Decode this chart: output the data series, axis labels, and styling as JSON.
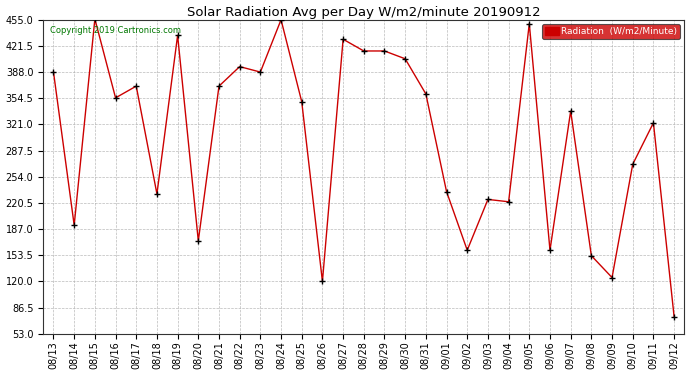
{
  "title": "Solar Radiation Avg per Day W/m2/minute 20190912",
  "copyright": "Copyright 2019 Cartronics.com",
  "legend_label": "Radiation  (W/m2/Minute)",
  "legend_bg": "#cc0000",
  "legend_text_color": "#ffffff",
  "line_color": "#cc0000",
  "marker_color": "#000000",
  "bg_color": "#ffffff",
  "plot_bg_color": "#ffffff",
  "grid_color": "#aaaaaa",
  "title_color": "#000000",
  "copyright_color": "#007700",
  "ylim": [
    53.0,
    455.0
  ],
  "yticks": [
    53.0,
    86.5,
    120.0,
    153.5,
    187.0,
    220.5,
    254.0,
    287.5,
    321.0,
    354.5,
    388.0,
    421.5,
    455.0
  ],
  "dates": [
    "08/13",
    "08/14",
    "08/15",
    "08/16",
    "08/17",
    "08/18",
    "08/19",
    "08/20",
    "08/21",
    "08/22",
    "08/23",
    "08/24",
    "08/25",
    "08/26",
    "08/27",
    "08/28",
    "08/29",
    "08/30",
    "08/31",
    "09/01",
    "09/02",
    "09/03",
    "09/04",
    "09/05",
    "09/06",
    "09/07",
    "09/08",
    "09/09",
    "09/10",
    "09/11",
    "09/12"
  ],
  "values": [
    388,
    192,
    456,
    355,
    370,
    232,
    435,
    172,
    370,
    395,
    388,
    455,
    350,
    120,
    430,
    415,
    415,
    405,
    360,
    235,
    160,
    225,
    222,
    450,
    160,
    338,
    153,
    125,
    270,
    323,
    75
  ]
}
